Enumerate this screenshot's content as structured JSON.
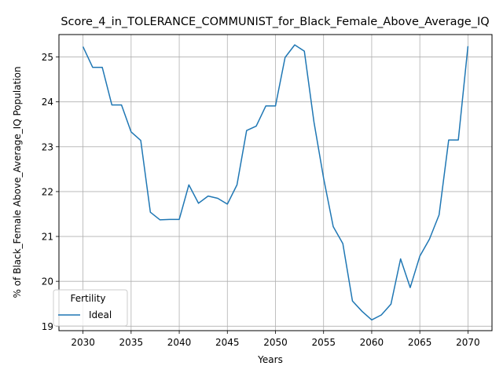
{
  "chart_data": {
    "type": "line",
    "title": "Score_4_in_TOLERANCE_COMMUNIST_for_Black_Female_Above_Average_IQ",
    "xlabel": "Years",
    "ylabel": "% of Black_Female Above_Average_IQ Population",
    "xlim": [
      2027.5,
      2072.5
    ],
    "ylim": [
      18.9,
      25.5
    ],
    "x_ticks": [
      2030,
      2035,
      2040,
      2045,
      2050,
      2055,
      2060,
      2065,
      2070
    ],
    "y_ticks": [
      19,
      20,
      21,
      22,
      23,
      24,
      25
    ],
    "grid": true,
    "legend": {
      "title": "Fertility",
      "placement": "lower-left"
    },
    "series": [
      {
        "name": "Ideal",
        "color": "#1f77b4",
        "x": [
          2030,
          2031,
          2032,
          2033,
          2034,
          2035,
          2036,
          2037,
          2038,
          2039,
          2040,
          2041,
          2042,
          2043,
          2044,
          2045,
          2046,
          2047,
          2048,
          2049,
          2050,
          2051,
          2052,
          2053,
          2054,
          2055,
          2056,
          2057,
          2058,
          2059,
          2060,
          2061,
          2062,
          2063,
          2064,
          2065,
          2066,
          2067,
          2068,
          2069,
          2070
        ],
        "values": [
          25.23,
          24.77,
          24.77,
          23.93,
          23.93,
          23.33,
          23.14,
          21.54,
          21.37,
          21.38,
          21.38,
          22.15,
          21.74,
          21.9,
          21.85,
          21.72,
          22.15,
          23.36,
          23.46,
          23.91,
          23.91,
          24.99,
          25.27,
          25.13,
          23.55,
          22.3,
          21.22,
          20.84,
          19.56,
          19.33,
          19.14,
          19.25,
          19.49,
          20.5,
          19.86,
          20.56,
          20.94,
          21.48,
          23.15,
          23.15,
          25.24
        ]
      }
    ]
  }
}
